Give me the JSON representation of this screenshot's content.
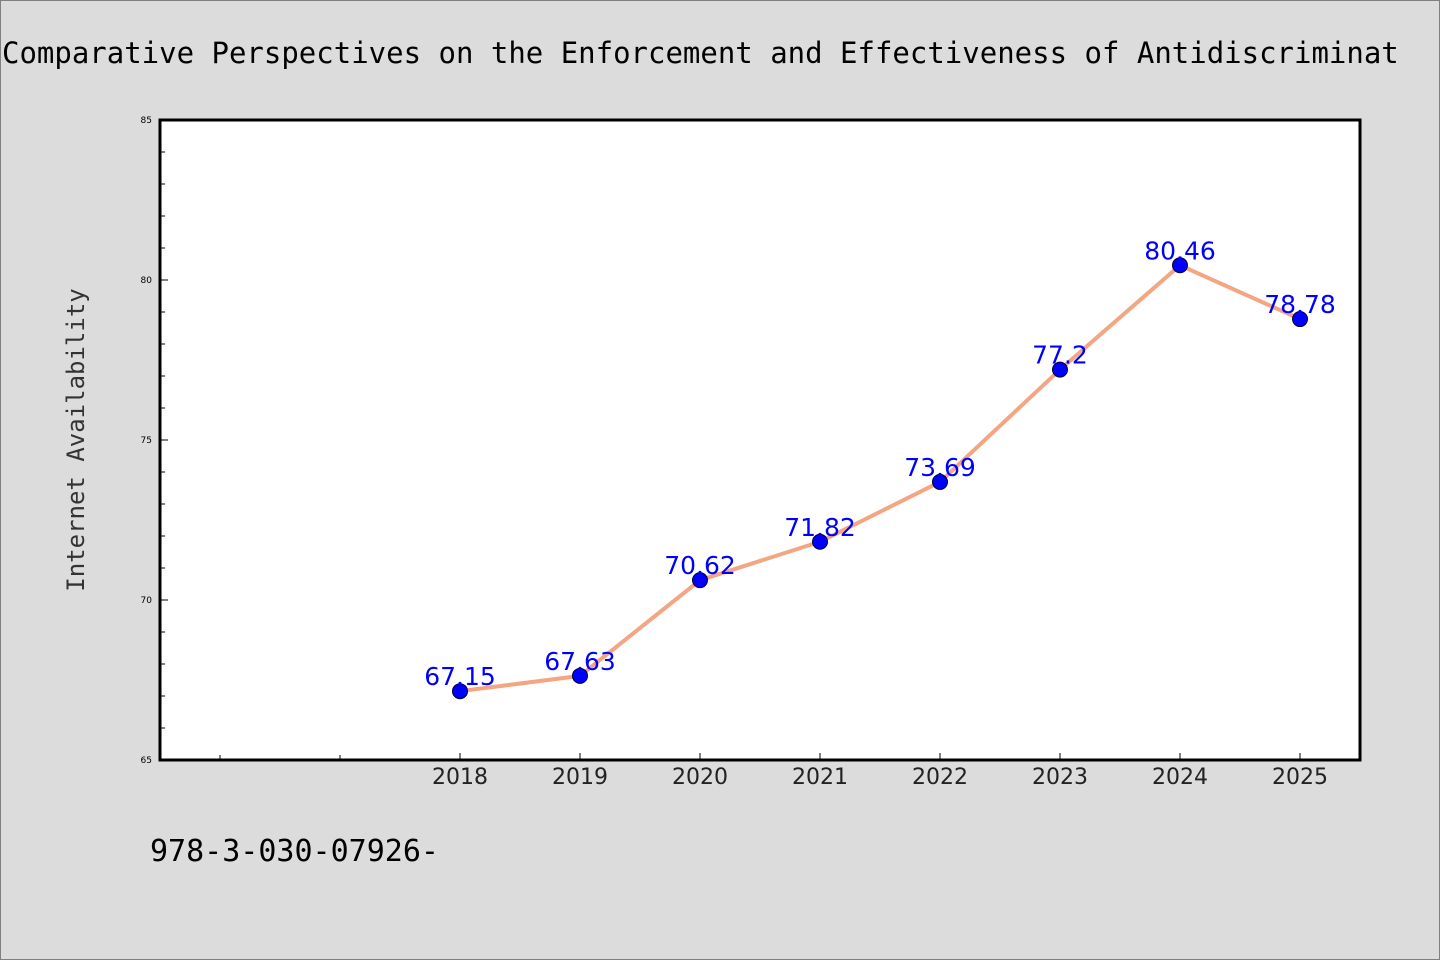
{
  "colors": {
    "background": "#dcdcdc",
    "plot_background": "#ffffff",
    "line": "#f4a582",
    "marker": "#0000ff",
    "data_label": "#0000ff"
  },
  "footnote": "978-3-030-07926-",
  "chart_data": {
    "type": "line",
    "title": "Comparative Perspectives on the Enforcement and Effectiveness of Antidiscriminat",
    "xlabel": "",
    "ylabel": "Internet Availability",
    "categories": [
      "2018",
      "2019",
      "2020",
      "2021",
      "2022",
      "2023",
      "2024",
      "2025"
    ],
    "x_slots_before_first": 2,
    "ylim": [
      65,
      85
    ],
    "yticks": [
      "65",
      "70",
      "75",
      "80",
      "85"
    ],
    "grid": false,
    "legend": "none",
    "series": [
      {
        "values": [
          67.15,
          67.63,
          70.62,
          71.82,
          73.69,
          77.2,
          80.46,
          78.78
        ],
        "labels": [
          "67.15",
          "67.63",
          "70.62",
          "71.82",
          "73.69",
          "77.2",
          "80.46",
          "78.78"
        ]
      }
    ]
  }
}
